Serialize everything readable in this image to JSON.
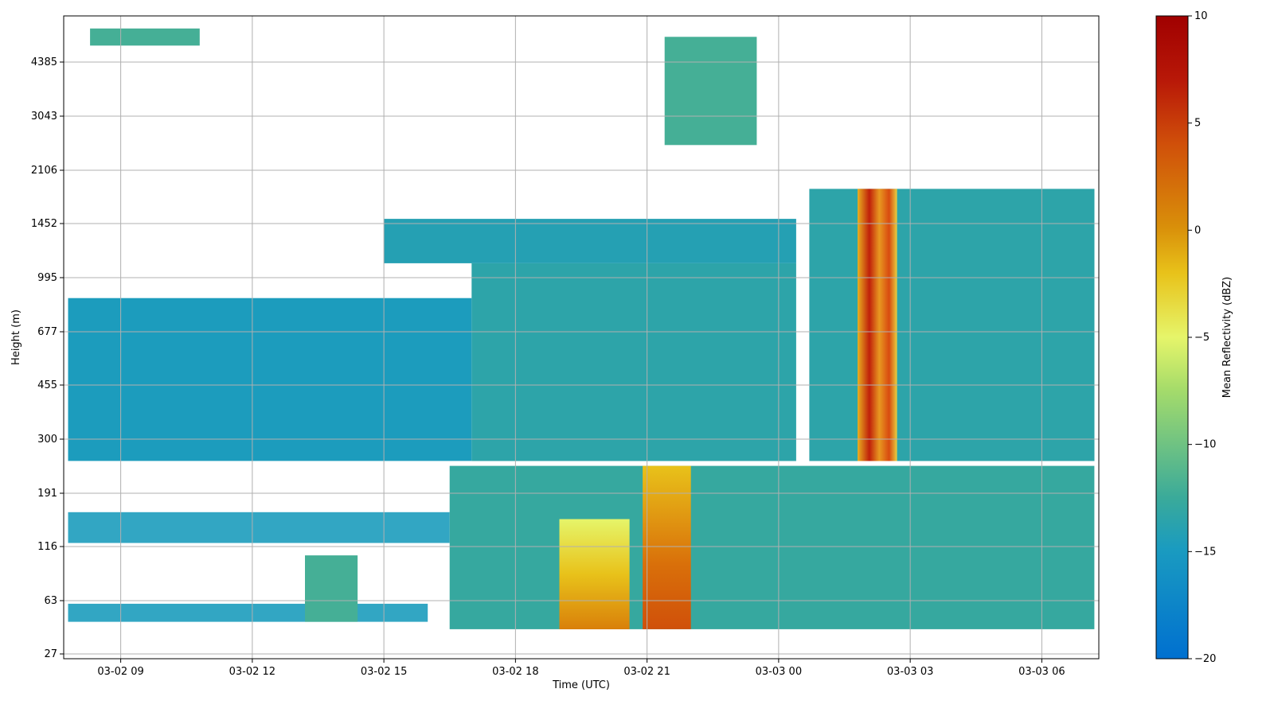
{
  "chart_data": {
    "type": "heatmap",
    "title": "",
    "xlabel": "Time (UTC)",
    "ylabel": "Height (m)",
    "x_ticks": [
      "03-02 09",
      "03-02 12",
      "03-02 15",
      "03-02 18",
      "03-02 21",
      "03-03 00",
      "03-03 03",
      "03-03 06"
    ],
    "x_tick_hours": [
      9,
      12,
      15,
      18,
      21,
      24,
      27,
      30
    ],
    "xlim_hours": [
      7.7,
      31.3
    ],
    "y_ticks": [
      "27",
      "63",
      "116",
      "116",
      "191",
      "300",
      "455",
      "677",
      "995",
      "1452",
      "2106",
      "3043",
      "4385"
    ],
    "y_tick_values": [
      27,
      63,
      116,
      116,
      191,
      300,
      455,
      677,
      995,
      1452,
      2106,
      3043,
      4385
    ],
    "grid": true,
    "colorbar": {
      "label": "Mean Reflectivity (dBZ)",
      "min": -20,
      "max": 10,
      "ticks": [
        -20,
        -15,
        -10,
        -5,
        0,
        5,
        10
      ],
      "tick_labels": [
        "−20",
        "−15",
        "−10",
        "−5",
        "0",
        "5",
        "10"
      ],
      "colormap": [
        "#0070d0",
        "#1a9bc0",
        "#3aaa9a",
        "#8cd27a",
        "#e6f56a",
        "#e8c21a",
        "#d9760a",
        "#b81808",
        "#a00000"
      ]
    },
    "regions": [
      {
        "t": [
          8.3,
          10.8
        ],
        "h": [
          4900,
          5500
        ],
        "dbz": -12
      },
      {
        "t": [
          21.4,
          23.5
        ],
        "h": [
          2500,
          5200
        ],
        "dbz": -12
      },
      {
        "t": [
          7.8,
          17.0
        ],
        "h": [
          250,
          860
        ],
        "dbz": -16
      },
      {
        "t": [
          17.0,
          24.4
        ],
        "h": [
          250,
          1100
        ],
        "dbz": -14
      },
      {
        "t": [
          15.0,
          24.4
        ],
        "h": [
          1100,
          1500
        ],
        "dbz": -15
      },
      {
        "t": [
          24.7,
          31.2
        ],
        "h": [
          250,
          1850
        ],
        "dbz": -14
      },
      {
        "t": [
          25.8,
          26.7
        ],
        "h": [
          250,
          1850
        ],
        "dbz": 0
      },
      {
        "t": [
          7.8,
          16.5
        ],
        "h": [
          120,
          160
        ],
        "dbz": -16
      },
      {
        "t": [
          16.5,
          31.2
        ],
        "h": [
          40,
          240
        ],
        "dbz": -13
      },
      {
        "t": [
          19.0,
          20.6
        ],
        "h": [
          40,
          150
        ],
        "dbz": -4
      },
      {
        "t": [
          20.9,
          22.0
        ],
        "h": [
          40,
          240
        ],
        "dbz": 1
      },
      {
        "t": [
          7.8,
          16.0
        ],
        "h": [
          45,
          60
        ],
        "dbz": -16
      },
      {
        "t": [
          13.2,
          14.4
        ],
        "h": [
          45,
          105
        ],
        "dbz": -12
      }
    ]
  }
}
